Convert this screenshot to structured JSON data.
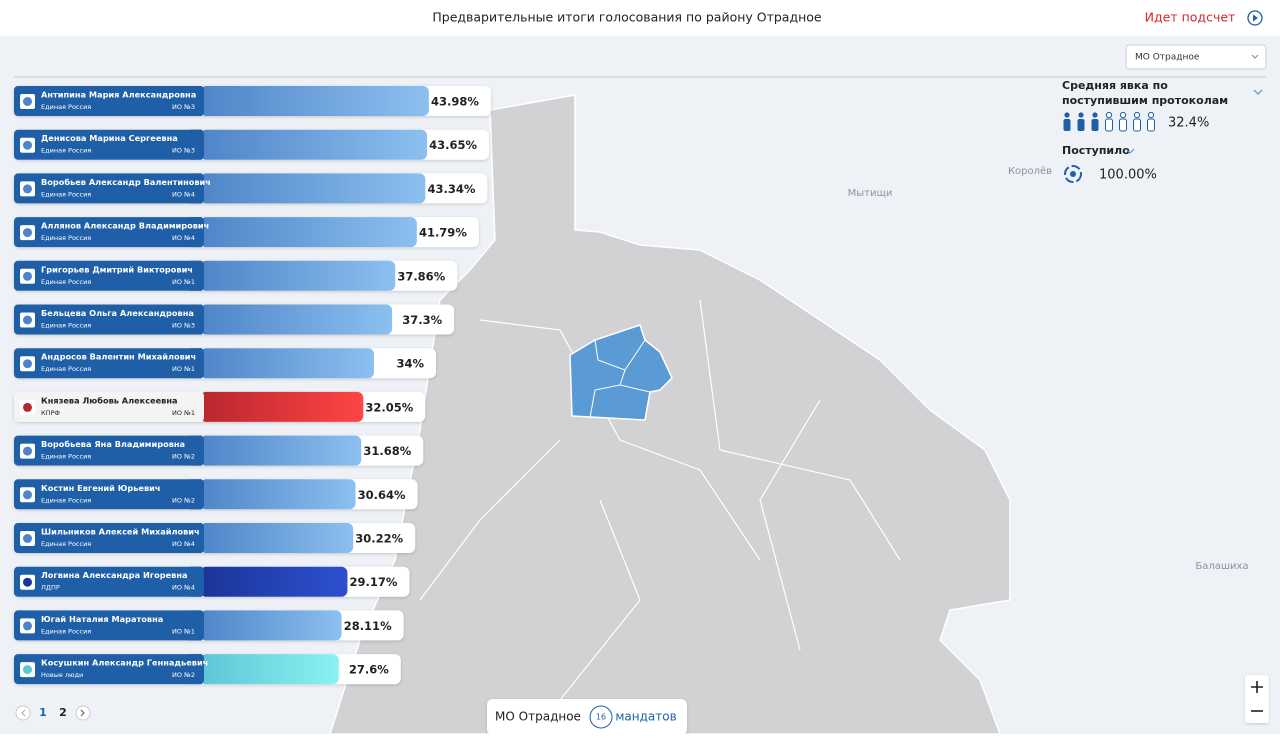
{
  "header": {
    "title": "Предварительные итоги голосования по району Отрадное",
    "status": "Идет подсчет"
  },
  "selector": "МО Отрадное",
  "turnout": {
    "title": "Средняя явка по поступившим протоколам",
    "value": 32.4,
    "label": "32.4%"
  },
  "received": {
    "title": "Поступило",
    "value": 100,
    "label": "100.00%"
  },
  "candidates": [
    {
      "name": "Антипина Мария Александровна",
      "party": "Единая Россия",
      "district": "ИО №3",
      "value": 43.98,
      "label": "43.98%",
      "color": [
        "#4f84c8",
        "#8cc0f0"
      ]
    },
    {
      "name": "Денисова Марина Сергеевна",
      "party": "Единая Россия",
      "district": "ИО №3",
      "value": 43.65,
      "label": "43.65%",
      "color": [
        "#4f84c8",
        "#8cc0f0"
      ]
    },
    {
      "name": "Воробьев Александр Валентинович",
      "party": "Единая Россия",
      "district": "ИО №4",
      "value": 43.34,
      "label": "43.34%",
      "color": [
        "#4f84c8",
        "#8cc0f0"
      ]
    },
    {
      "name": "Аллянов Александр Владимирович",
      "party": "Единая Россия",
      "district": "ИО №4",
      "value": 41.79,
      "label": "41.79%",
      "color": [
        "#4f84c8",
        "#8cc0f0"
      ]
    },
    {
      "name": "Григорьев Дмитрий Викторович",
      "party": "Единая Россия",
      "district": "ИО №1",
      "value": 37.86,
      "label": "37.86%",
      "color": [
        "#4f84c8",
        "#8cc0f0"
      ]
    },
    {
      "name": "Бельцева Ольга Александровна",
      "party": "Единая Россия",
      "district": "ИО №3",
      "value": 37.3,
      "label": "37.3%",
      "color": [
        "#4f84c8",
        "#8cc0f0"
      ]
    },
    {
      "name": "Андросов Валентин Михайлович",
      "party": "Единая Россия",
      "district": "ИО №1",
      "value": 34,
      "label": "34%",
      "color": [
        "#4f84c8",
        "#8cc0f0"
      ]
    },
    {
      "name": "Князева Любовь Алексеевна",
      "party": "КПРФ",
      "district": "ИО №1",
      "value": 32.05,
      "label": "32.05%",
      "color": [
        "#b8272d",
        "#ff4545"
      ]
    },
    {
      "name": "Воробьева Яна Владимировна",
      "party": "Единая Россия",
      "district": "ИО №2",
      "value": 31.68,
      "label": "31.68%",
      "color": [
        "#4f84c8",
        "#8cc0f0"
      ]
    },
    {
      "name": "Костин Евгений Юрьевич",
      "party": "Единая Россия",
      "district": "ИО №2",
      "value": 30.64,
      "label": "30.64%",
      "color": [
        "#4f84c8",
        "#8cc0f0"
      ]
    },
    {
      "name": "Шильников Алексей Михайлович",
      "party": "Единая Россия",
      "district": "ИО №4",
      "value": 30.22,
      "label": "30.22%",
      "color": [
        "#4f84c8",
        "#8cc0f0"
      ]
    },
    {
      "name": "Логвина Александра Игоревна",
      "party": "ЛДПР",
      "district": "ИО №4",
      "value": 29.17,
      "label": "29.17%",
      "color": [
        "#1a3597",
        "#2d50d0"
      ]
    },
    {
      "name": "Югай Наталия Маратовна",
      "party": "Единая Россия",
      "district": "ИО №1",
      "value": 28.11,
      "label": "28.11%",
      "color": [
        "#4f84c8",
        "#8cc0f0"
      ]
    },
    {
      "name": "Косушкин Александр Геннадьевич",
      "party": "Новые люди",
      "district": "ИО №2",
      "value": 27.6,
      "label": "27.6%",
      "color": [
        "#5cc6d6",
        "#8af2f2"
      ]
    }
  ],
  "pages": [
    "1",
    "2"
  ],
  "footer": {
    "area": "МО Отрадное",
    "mandates": 16,
    "mandates_label": "мандатов"
  },
  "map_labels": [
    "Мытищи",
    "Королёв",
    "Балашиха"
  ]
}
